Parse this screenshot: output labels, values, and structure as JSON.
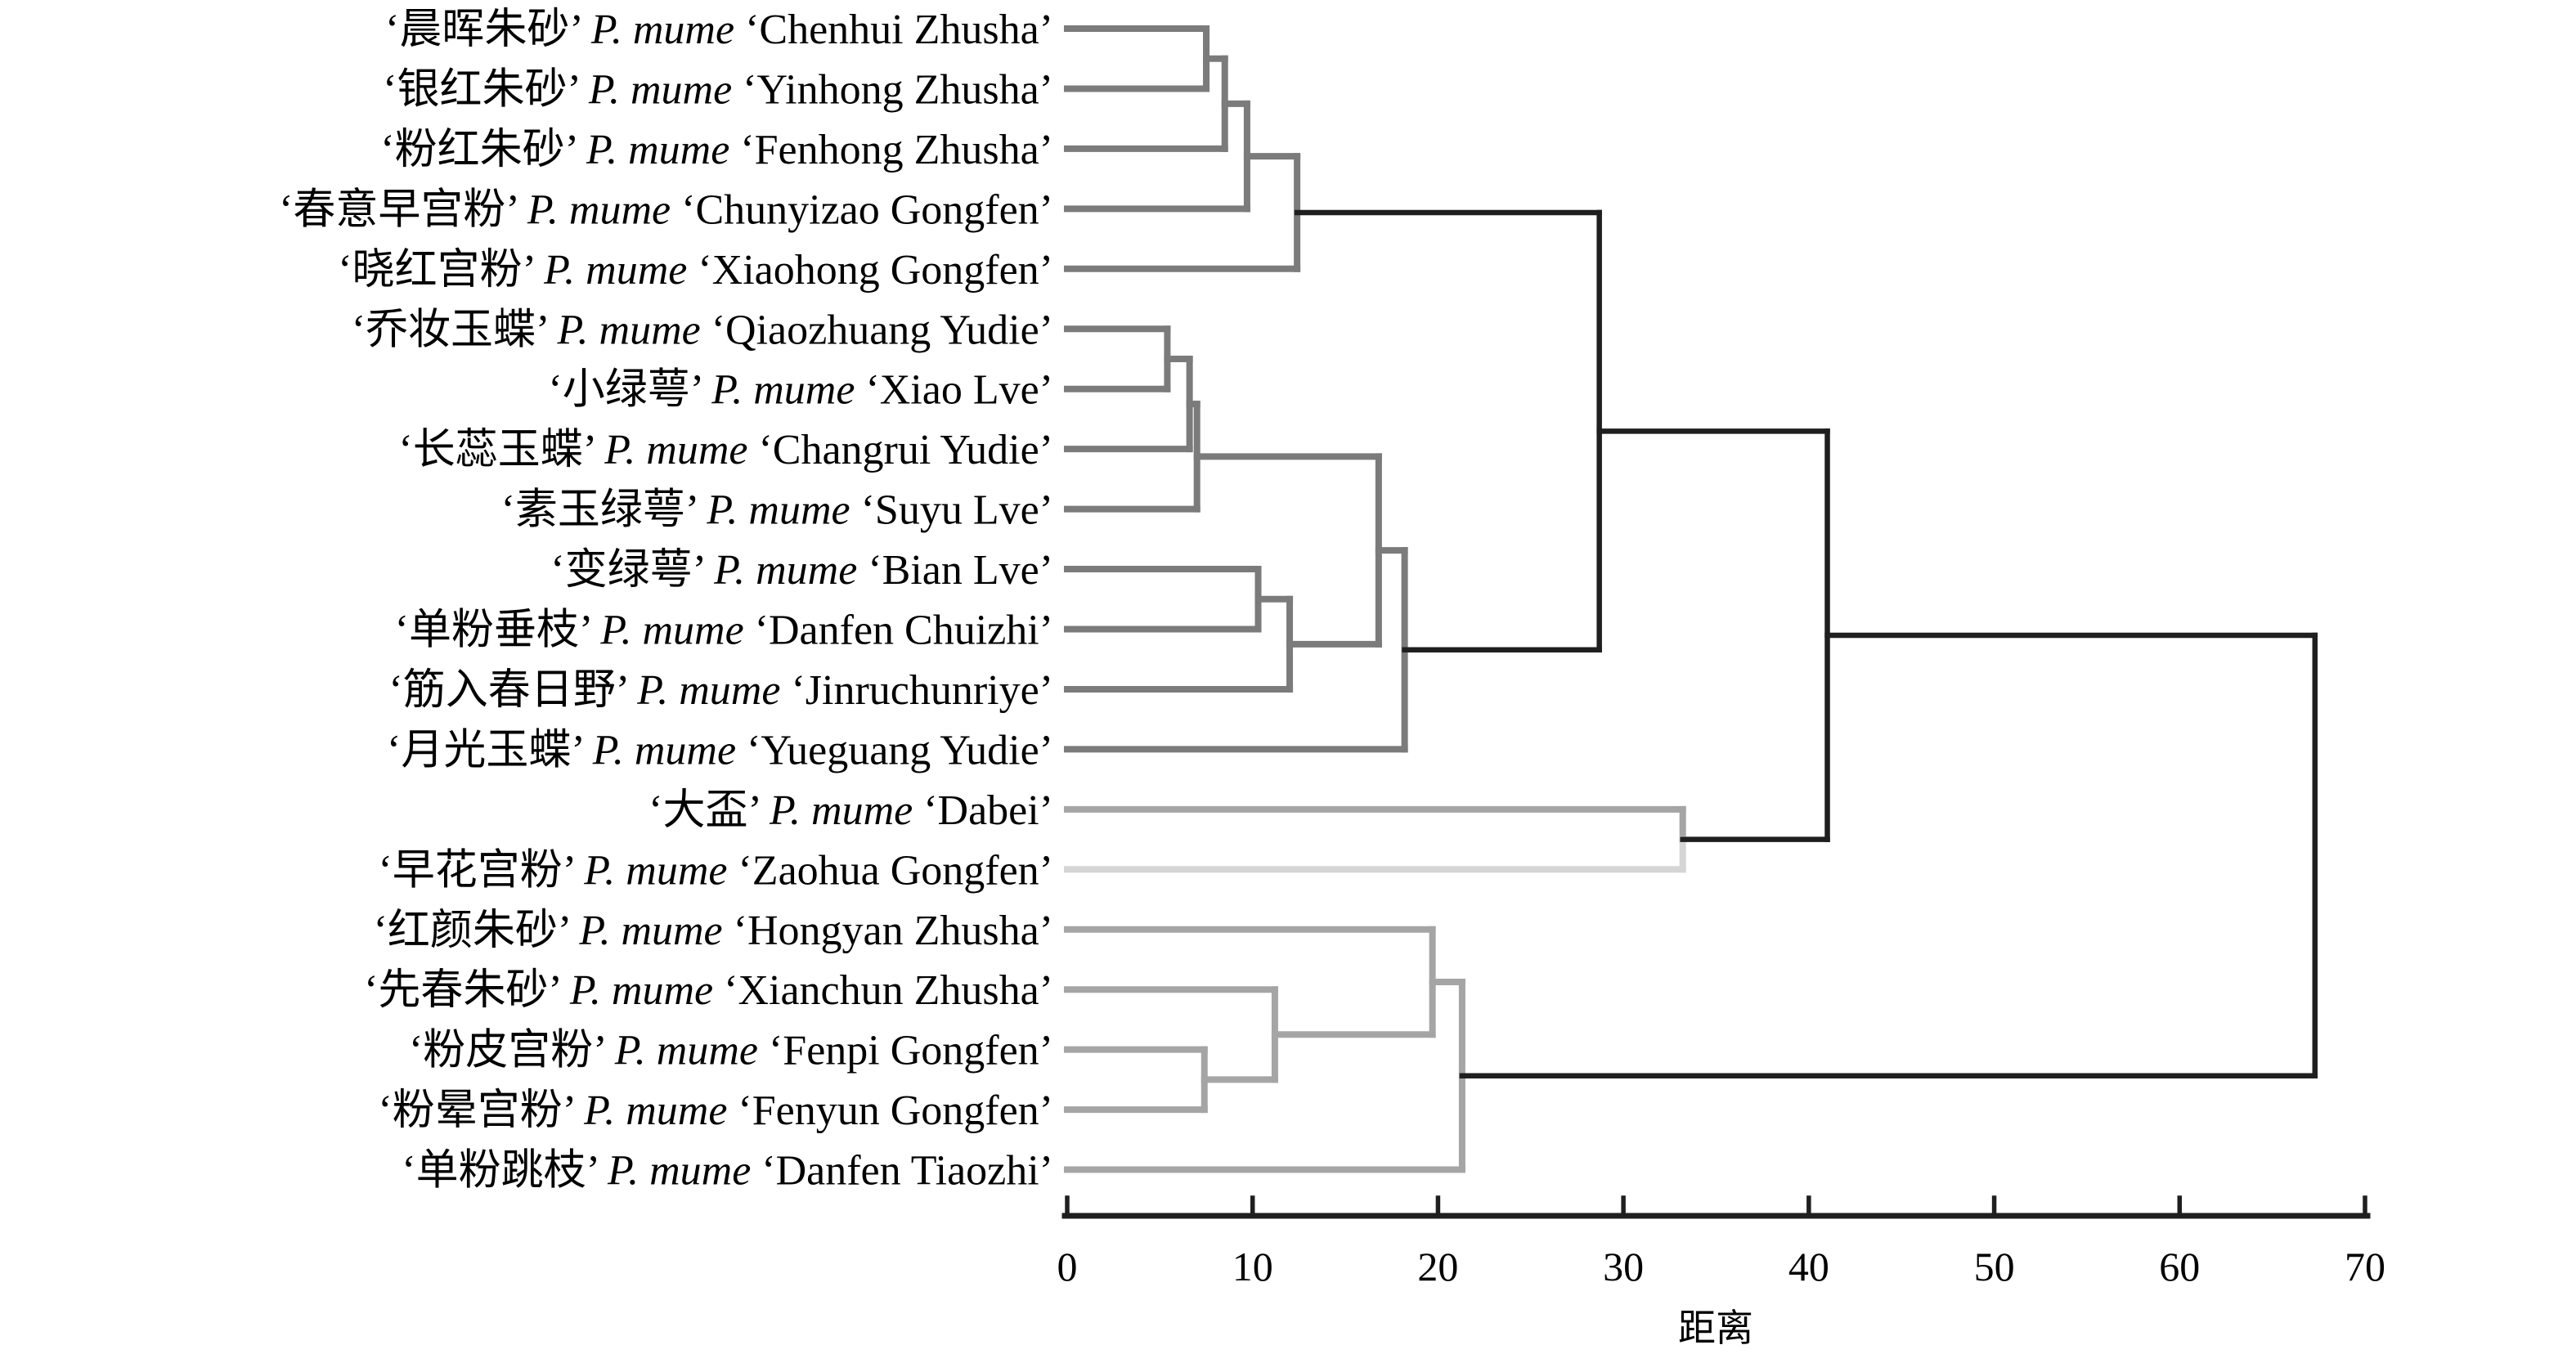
{
  "figure": {
    "background": "#ffffff"
  },
  "chart_data": {
    "type": "dendrogram",
    "orientation": "horizontal",
    "title": "",
    "xlabel": "距离",
    "xlim": [
      0,
      70
    ],
    "x_ticks": [
      0,
      10,
      20,
      30,
      40,
      50,
      60,
      70
    ],
    "grid": false,
    "axis_color": "#1f1f1f",
    "link_colors": {
      "cluster_ab_gray": "#7b7b7b",
      "cluster_d_gray": "#a5a5a5",
      "cluster_c_light": "#d5d5d5",
      "connector_black": "#1f1f1f"
    },
    "leaves": [
      {
        "id": "L1",
        "name_cn": "晨晖朱砂",
        "species": "P. mume",
        "cultivar": "Chenhui Zhusha",
        "color": "#7b7b7b"
      },
      {
        "id": "L2",
        "name_cn": "银红朱砂",
        "species": "P. mume",
        "cultivar": "Yinhong Zhusha",
        "color": "#7b7b7b"
      },
      {
        "id": "L3",
        "name_cn": "粉红朱砂",
        "species": "P. mume",
        "cultivar": "Fenhong Zhusha",
        "color": "#7b7b7b"
      },
      {
        "id": "L4",
        "name_cn": "春意早宫粉",
        "species": "P. mume",
        "cultivar": "Chunyizao Gongfen",
        "color": "#7b7b7b"
      },
      {
        "id": "L5",
        "name_cn": "晓红宫粉",
        "species": "P. mume",
        "cultivar": "Xiaohong Gongfen",
        "color": "#7b7b7b"
      },
      {
        "id": "L6",
        "name_cn": "乔妆玉蝶",
        "species": "P. mume",
        "cultivar": "Qiaozhuang Yudie",
        "color": "#7b7b7b"
      },
      {
        "id": "L7",
        "name_cn": "小绿萼",
        "species": "P. mume",
        "cultivar": "Xiao Lve",
        "color": "#7b7b7b"
      },
      {
        "id": "L8",
        "name_cn": "长蕊玉蝶",
        "species": "P. mume",
        "cultivar": "Changrui Yudie",
        "color": "#7b7b7b"
      },
      {
        "id": "L9",
        "name_cn": "素玉绿萼",
        "species": "P. mume",
        "cultivar": "Suyu Lve",
        "color": "#7b7b7b"
      },
      {
        "id": "L10",
        "name_cn": "变绿萼",
        "species": "P. mume",
        "cultivar": "Bian Lve",
        "color": "#7b7b7b"
      },
      {
        "id": "L11",
        "name_cn": "单粉垂枝",
        "species": "P. mume",
        "cultivar": "Danfen Chuizhi",
        "color": "#7b7b7b"
      },
      {
        "id": "L12",
        "name_cn": "筋入春日野",
        "species": "P. mume",
        "cultivar": "Jinruchunriye",
        "color": "#7b7b7b"
      },
      {
        "id": "L13",
        "name_cn": "月光玉蝶",
        "species": "P. mume",
        "cultivar": "Yueguang Yudie",
        "color": "#7b7b7b"
      },
      {
        "id": "L14",
        "name_cn": "大盃",
        "species": "P. mume",
        "cultivar": "Dabei",
        "color": "#a5a5a5"
      },
      {
        "id": "L15",
        "name_cn": "早花宫粉",
        "species": "P. mume",
        "cultivar": "Zaohua Gongfen",
        "color": "#d5d5d5"
      },
      {
        "id": "L16",
        "name_cn": "红颜朱砂",
        "species": "P. mume",
        "cultivar": "Hongyan Zhusha",
        "color": "#a5a5a5"
      },
      {
        "id": "L17",
        "name_cn": "先春朱砂",
        "species": "P. mume",
        "cultivar": "Xianchun Zhusha",
        "color": "#a5a5a5"
      },
      {
        "id": "L18",
        "name_cn": "粉皮宫粉",
        "species": "P. mume",
        "cultivar": "Fenpi Gongfen",
        "color": "#a5a5a5"
      },
      {
        "id": "L19",
        "name_cn": "粉晕宫粉",
        "species": "P. mume",
        "cultivar": "Fenyun Gongfen",
        "color": "#a5a5a5"
      },
      {
        "id": "L20",
        "name_cn": "单粉跳枝",
        "species": "P. mume",
        "cultivar": "Danfen Tiaozhi",
        "color": "#a5a5a5"
      }
    ],
    "merges": [
      {
        "id": "M1",
        "children": [
          "L1",
          "L2"
        ],
        "dist": 7.5,
        "color": "#7b7b7b"
      },
      {
        "id": "M2",
        "children": [
          "M1",
          "L3"
        ],
        "dist": 8.5,
        "color": "#7b7b7b"
      },
      {
        "id": "M3",
        "children": [
          "M2",
          "L4"
        ],
        "dist": 9.7,
        "color": "#7b7b7b"
      },
      {
        "id": "M4",
        "children": [
          "M3",
          "L5"
        ],
        "dist": 12.4,
        "color": "#7b7b7b"
      },
      {
        "id": "M5",
        "children": [
          "L6",
          "L7"
        ],
        "dist": 5.4,
        "color": "#7b7b7b"
      },
      {
        "id": "M6",
        "children": [
          "M5",
          "L8"
        ],
        "dist": 6.6,
        "color": "#7b7b7b"
      },
      {
        "id": "M7",
        "children": [
          "M6",
          "L9"
        ],
        "dist": 7.0,
        "color": "#7b7b7b"
      },
      {
        "id": "M8",
        "children": [
          "L10",
          "L11"
        ],
        "dist": 10.3,
        "color": "#7b7b7b"
      },
      {
        "id": "M9",
        "children": [
          "M8",
          "L12"
        ],
        "dist": 12.0,
        "color": "#7b7b7b"
      },
      {
        "id": "M10",
        "children": [
          "M7",
          "M9"
        ],
        "dist": 16.8,
        "color": "#7b7b7b"
      },
      {
        "id": "M11",
        "children": [
          "M10",
          "L13"
        ],
        "dist": 18.2,
        "color": "#7b7b7b"
      },
      {
        "id": "M12",
        "children": [
          "M4",
          "M11"
        ],
        "dist": 28.7,
        "color": "#1f1f1f"
      },
      {
        "id": "M13",
        "children": [
          "L14",
          "L15"
        ],
        "dist": 33.2,
        "color": "#a5a5a5",
        "color_lower": "#d5d5d5"
      },
      {
        "id": "M14",
        "children": [
          "M12",
          "M13"
        ],
        "dist": 41.0,
        "color": "#1f1f1f"
      },
      {
        "id": "M15",
        "children": [
          "L18",
          "L19"
        ],
        "dist": 7.4,
        "color": "#a5a5a5"
      },
      {
        "id": "M16",
        "children": [
          "L17",
          "M15"
        ],
        "dist": 11.2,
        "color": "#a5a5a5"
      },
      {
        "id": "M17",
        "children": [
          "L16",
          "M16"
        ],
        "dist": 19.7,
        "color": "#a5a5a5"
      },
      {
        "id": "M18",
        "children": [
          "M17",
          "L20"
        ],
        "dist": 21.3,
        "color": "#a5a5a5"
      },
      {
        "id": "M19",
        "children": [
          "M14",
          "M18"
        ],
        "dist": 67.3,
        "color": "#1f1f1f"
      }
    ]
  }
}
